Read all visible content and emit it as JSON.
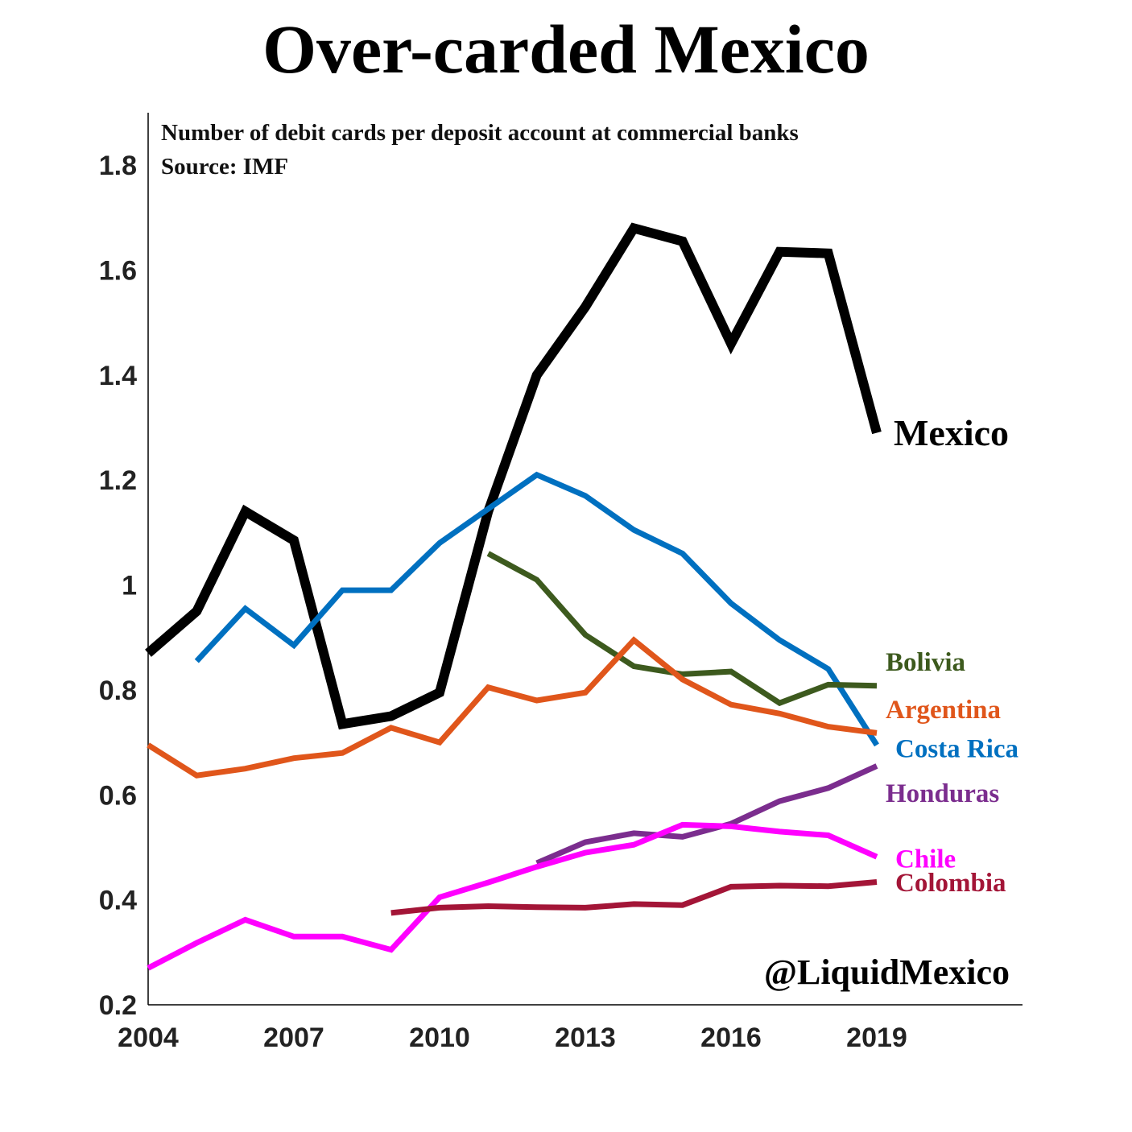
{
  "chart_data": {
    "type": "line",
    "title": "Over-carded Mexico",
    "subtitle": "Number of debit cards per deposit account at commercial banks",
    "source": "Source: IMF",
    "watermark": "@LiquidMexico",
    "xlim": [
      2004,
      2022
    ],
    "ylim": [
      0.2,
      1.9
    ],
    "x_ticks": [
      2004,
      2007,
      2010,
      2013,
      2016,
      2019
    ],
    "y_ticks": [
      0.2,
      0.4,
      0.6,
      0.8,
      1,
      1.2,
      1.4,
      1.6,
      1.8
    ],
    "legend": "direct labels at line ends",
    "grid": false,
    "series": [
      {
        "name": "Mexico",
        "color": "#000000",
        "width": 12,
        "x": [
          2004,
          2005,
          2006,
          2007,
          2008,
          2009,
          2010,
          2011,
          2012,
          2013,
          2014,
          2015,
          2016,
          2017,
          2018,
          2019
        ],
        "y": [
          0.87,
          0.95,
          1.14,
          1.085,
          0.735,
          0.75,
          0.795,
          1.14,
          1.4,
          1.53,
          1.68,
          1.655,
          1.46,
          1.635,
          1.632,
          1.29
        ],
        "label_y": 1.285
      },
      {
        "name": "Costa Rica",
        "color": "#0070C0",
        "width": 7,
        "x": [
          2005,
          2006,
          2007,
          2008,
          2009,
          2010,
          2011,
          2012,
          2013,
          2014,
          2015,
          2016,
          2017,
          2018,
          2019
        ],
        "y": [
          0.855,
          0.955,
          0.885,
          0.99,
          0.99,
          1.08,
          1.145,
          1.21,
          1.17,
          1.105,
          1.06,
          0.965,
          0.895,
          0.84,
          0.695
        ],
        "label_y": 0.69
      },
      {
        "name": "Bolivia",
        "color": "#3D5A1E",
        "width": 7,
        "x": [
          2011,
          2012,
          2013,
          2014,
          2015,
          2016,
          2017,
          2018,
          2019
        ],
        "y": [
          1.06,
          1.01,
          0.905,
          0.845,
          0.83,
          0.835,
          0.775,
          0.81,
          0.808
        ],
        "label_y": 0.855
      },
      {
        "name": "Argentina",
        "color": "#E0561B",
        "width": 7,
        "x": [
          2004,
          2005,
          2006,
          2007,
          2008,
          2009,
          2010,
          2011,
          2012,
          2013,
          2014,
          2015,
          2016,
          2017,
          2018,
          2019
        ],
        "y": [
          0.695,
          0.637,
          0.65,
          0.67,
          0.68,
          0.728,
          0.7,
          0.805,
          0.78,
          0.795,
          0.895,
          0.82,
          0.772,
          0.755,
          0.73,
          0.718
        ],
        "label_y": 0.765
      },
      {
        "name": "Honduras",
        "color": "#7B2D8E",
        "width": 7,
        "x": [
          2012,
          2013,
          2014,
          2015,
          2016,
          2017,
          2018,
          2019
        ],
        "y": [
          0.47,
          0.51,
          0.527,
          0.52,
          0.545,
          0.588,
          0.613,
          0.655
        ],
        "label_y": 0.605
      },
      {
        "name": "Chile",
        "color": "#FF00FF",
        "width": 7,
        "x": [
          2004,
          2005,
          2006,
          2007,
          2008,
          2009,
          2010,
          2011,
          2012,
          2013,
          2014,
          2015,
          2016,
          2017,
          2018,
          2019
        ],
        "y": [
          0.27,
          0.318,
          0.362,
          0.33,
          0.33,
          0.305,
          0.405,
          0.433,
          0.463,
          0.49,
          0.505,
          0.543,
          0.54,
          0.53,
          0.523,
          0.482
        ],
        "label_y": 0.48
      },
      {
        "name": "Colombia",
        "color": "#A31537",
        "width": 7,
        "x": [
          2009,
          2010,
          2011,
          2012,
          2013,
          2014,
          2015,
          2016,
          2017,
          2018,
          2019
        ],
        "y": [
          0.375,
          0.385,
          0.388,
          0.386,
          0.385,
          0.392,
          0.39,
          0.425,
          0.427,
          0.426,
          0.434
        ],
        "label_y": 0.435
      }
    ]
  }
}
